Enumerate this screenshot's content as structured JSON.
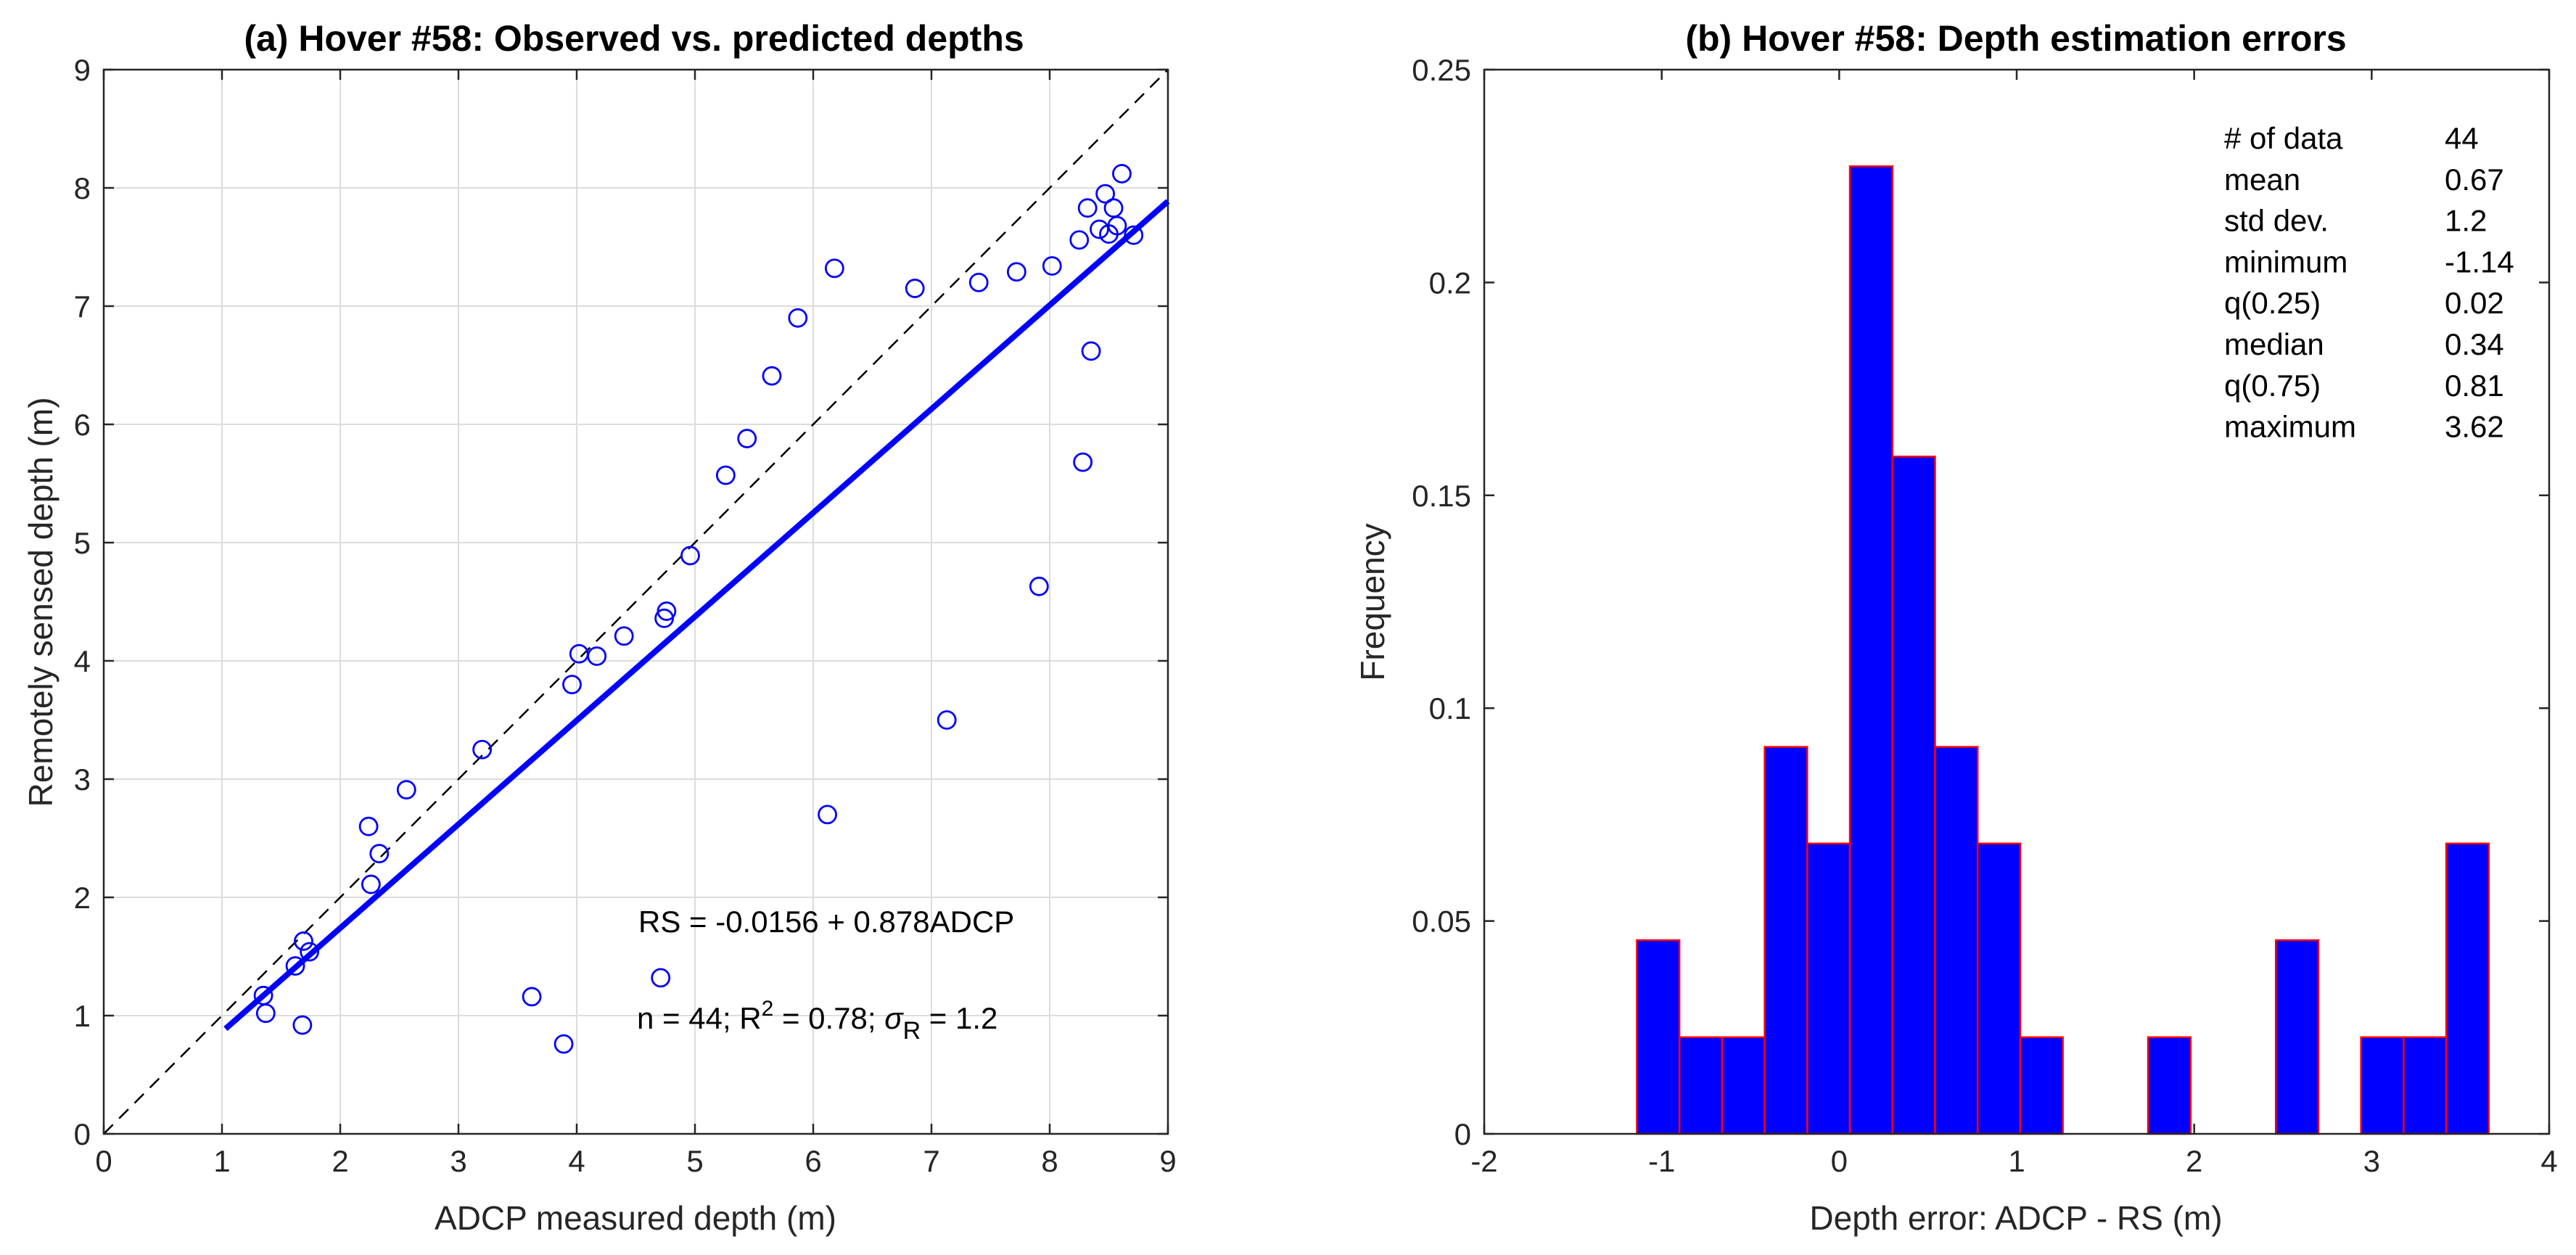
{
  "chart_data": [
    {
      "type": "scatter",
      "title": "(a) Hover #58: Observed vs. predicted depths",
      "xlabel": "ADCP measured depth (m)",
      "ylabel": "Remotely sensed depth (m)",
      "xlim": [
        0,
        9
      ],
      "ylim": [
        0,
        9
      ],
      "xticks": [
        "0",
        "1",
        "2",
        "3",
        "4",
        "5",
        "6",
        "7",
        "8",
        "9"
      ],
      "yticks": [
        "0",
        "1",
        "2",
        "3",
        "4",
        "5",
        "6",
        "7",
        "8",
        "9"
      ],
      "grid": true,
      "colors": {
        "points": "#0000ff",
        "fit": "#0000ff",
        "identity": "#000000"
      },
      "series": [
        {
          "name": "observations",
          "x": [
            1.35,
            1.37,
            1.62,
            1.68,
            1.69,
            1.74,
            2.24,
            2.26,
            2.33,
            2.56,
            3.2,
            3.62,
            3.89,
            3.96,
            4.02,
            4.17,
            4.4,
            4.71,
            4.74,
            4.76,
            4.96,
            5.26,
            5.44,
            5.65,
            5.87,
            6.12,
            6.18,
            6.86,
            7.13,
            7.4,
            7.72,
            7.91,
            8.02,
            8.25,
            8.28,
            8.32,
            8.35,
            8.42,
            8.47,
            8.5,
            8.54,
            8.57,
            8.61,
            8.71
          ],
          "y": [
            1.17,
            1.02,
            1.42,
            0.92,
            1.63,
            1.54,
            2.6,
            2.11,
            2.37,
            2.91,
            3.25,
            1.16,
            0.76,
            3.8,
            4.06,
            4.04,
            4.21,
            1.32,
            4.36,
            4.42,
            4.89,
            5.57,
            5.88,
            6.41,
            6.9,
            2.7,
            7.32,
            7.15,
            3.5,
            7.2,
            7.29,
            4.63,
            7.34,
            7.56,
            5.68,
            7.83,
            6.62,
            7.65,
            7.95,
            7.61,
            7.83,
            7.68,
            8.12,
            7.6
          ]
        }
      ],
      "fit_line": {
        "label": "RS = -0.0156 + 0.878ADCP",
        "intercept": -0.0156,
        "slope": 0.878,
        "x_range": [
          1.03,
          9
        ]
      },
      "identity_line": {
        "x_range": [
          0,
          9
        ]
      },
      "annotations": {
        "equation": "RS = -0.0156 + 0.878ADCP",
        "stats_prefix": "n = 44; R",
        "r2_sup": "2",
        "stats_mid": " = 0.78; ",
        "sigma": "σ",
        "sigma_sub": "R",
        "stats_end": " = 1.2"
      }
    },
    {
      "type": "bar",
      "title": "(b) Hover #58: Depth estimation errors",
      "xlabel": "Depth error: ADCP - RS (m)",
      "ylabel": "Frequency",
      "xlim": [
        -2,
        4
      ],
      "ylim": [
        0,
        0.25
      ],
      "xticks": [
        "-2",
        "-1",
        "0",
        "1",
        "2",
        "3",
        "4"
      ],
      "yticks": [
        "0",
        "0.05",
        "0.1",
        "0.15",
        "0.2",
        "0.25"
      ],
      "grid": false,
      "colors": {
        "bar_fill": "#0000ff",
        "bar_edge": "#ff0000"
      },
      "bin_edges": [
        -1.14,
        -0.9,
        -0.66,
        -0.42,
        -0.18,
        0.06,
        0.3,
        0.54,
        0.78,
        1.02,
        1.26,
        1.5,
        1.74,
        1.98,
        2.22,
        2.46,
        2.7,
        2.94,
        3.18,
        3.42,
        3.66
      ],
      "values": [
        0.0455,
        0.0227,
        0.0227,
        0.0909,
        0.0682,
        0.2273,
        0.1591,
        0.0909,
        0.0682,
        0.0227,
        0,
        0,
        0.0227,
        0,
        0,
        0.0455,
        0,
        0.0227,
        0.0227,
        0.0682
      ],
      "stats_table": [
        [
          "# of data",
          "44"
        ],
        [
          "mean",
          "0.67"
        ],
        [
          "std dev.",
          "1.2"
        ],
        [
          "minimum",
          "-1.14"
        ],
        [
          "q(0.25)",
          "0.02"
        ],
        [
          "median",
          "0.34"
        ],
        [
          "q(0.75)",
          "0.81"
        ],
        [
          "maximum",
          "3.62"
        ]
      ]
    }
  ]
}
